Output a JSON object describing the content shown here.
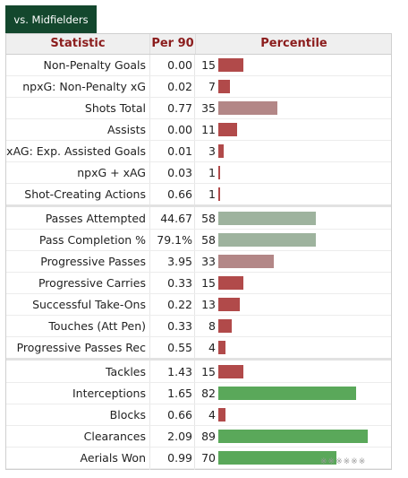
{
  "tab": {
    "label": "vs. Midfielders"
  },
  "table": {
    "headers": {
      "statistic": "Statistic",
      "per90": "Per 90",
      "percentile": "Percentile"
    },
    "groups": [
      {
        "rows": [
          {
            "stat": "Non-Penalty Goals",
            "per90": "0.00",
            "percentile": 15
          },
          {
            "stat": "npxG: Non-Penalty xG",
            "per90": "0.02",
            "percentile": 7
          },
          {
            "stat": "Shots Total",
            "per90": "0.77",
            "percentile": 35
          },
          {
            "stat": "Assists",
            "per90": "0.00",
            "percentile": 11
          },
          {
            "stat": "xAG: Exp. Assisted Goals",
            "per90": "0.01",
            "percentile": 3
          },
          {
            "stat": "npxG + xAG",
            "per90": "0.03",
            "percentile": 1
          },
          {
            "stat": "Shot-Creating Actions",
            "per90": "0.66",
            "percentile": 1
          }
        ]
      },
      {
        "rows": [
          {
            "stat": "Passes Attempted",
            "per90": "44.67",
            "percentile": 58
          },
          {
            "stat": "Pass Completion %",
            "per90": "79.1%",
            "percentile": 58
          },
          {
            "stat": "Progressive Passes",
            "per90": "3.95",
            "percentile": 33
          },
          {
            "stat": "Progressive Carries",
            "per90": "0.33",
            "percentile": 15
          },
          {
            "stat": "Successful Take-Ons",
            "per90": "0.22",
            "percentile": 13
          },
          {
            "stat": "Touches (Att Pen)",
            "per90": "0.33",
            "percentile": 8
          },
          {
            "stat": "Progressive Passes Rec",
            "per90": "0.55",
            "percentile": 4
          }
        ]
      },
      {
        "rows": [
          {
            "stat": "Tackles",
            "per90": "1.43",
            "percentile": 15
          },
          {
            "stat": "Interceptions",
            "per90": "1.65",
            "percentile": 82
          },
          {
            "stat": "Blocks",
            "per90": "0.66",
            "percentile": 4
          },
          {
            "stat": "Clearances",
            "per90": "2.09",
            "percentile": 89
          },
          {
            "stat": "Aerials Won",
            "per90": "0.99",
            "percentile": 70
          }
        ]
      }
    ]
  },
  "colors": {
    "tab_bg": "#13472d",
    "header_text": "#8b1c1c",
    "bar_very_low": "#b14a4a",
    "bar_low": "#b38787",
    "bar_mid": "#9eb39e",
    "bar_high": "#5aa85a"
  },
  "watermark": "※※※※※※"
}
